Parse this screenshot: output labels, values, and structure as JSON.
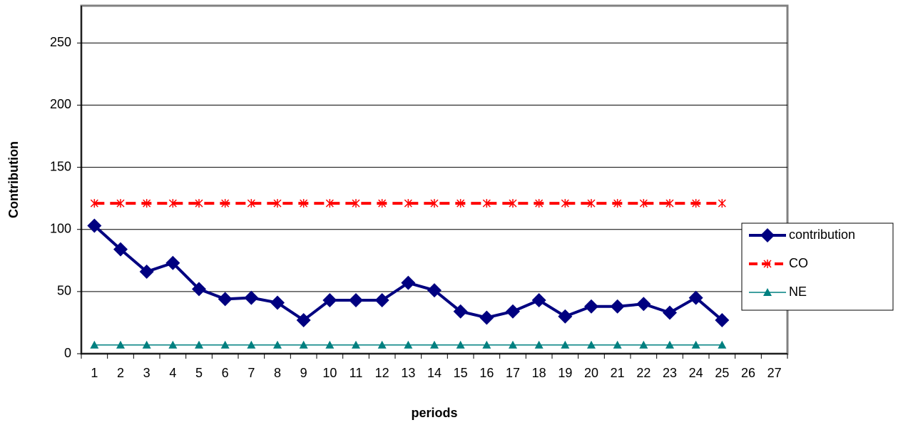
{
  "chart_data": {
    "type": "line",
    "y_label": "Contribution",
    "x_label": "periods",
    "categories": [
      "1",
      "2",
      "3",
      "4",
      "5",
      "6",
      "7",
      "8",
      "9",
      "10",
      "11",
      "12",
      "13",
      "14",
      "15",
      "16",
      "17",
      "18",
      "19",
      "20",
      "21",
      "22",
      "23",
      "24",
      "25",
      "26",
      "27"
    ],
    "series": [
      {
        "name": "contribution",
        "color": "#000080",
        "values": [
          103,
          84,
          66,
          73,
          52,
          44,
          45,
          41,
          27,
          43,
          43,
          43,
          57,
          51,
          34,
          29,
          34,
          43,
          30,
          38,
          38,
          40,
          33,
          45,
          27,
          null,
          null
        ]
      },
      {
        "name": "CO",
        "color": "#ff0000",
        "values": [
          121,
          121,
          121,
          121,
          121,
          121,
          121,
          121,
          121,
          121,
          121,
          121,
          121,
          121,
          121,
          121,
          121,
          121,
          121,
          121,
          121,
          121,
          121,
          121,
          121,
          null,
          null
        ]
      },
      {
        "name": "NE",
        "color": "#008080",
        "values": [
          7,
          7,
          7,
          7,
          7,
          7,
          7,
          7,
          7,
          7,
          7,
          7,
          7,
          7,
          7,
          7,
          7,
          7,
          7,
          7,
          7,
          7,
          7,
          7,
          7,
          null,
          null
        ]
      }
    ],
    "ylim": [
      0,
      280
    ],
    "yticks": [
      0,
      50,
      100,
      150,
      200,
      250
    ],
    "grid": true,
    "legend": "right"
  }
}
